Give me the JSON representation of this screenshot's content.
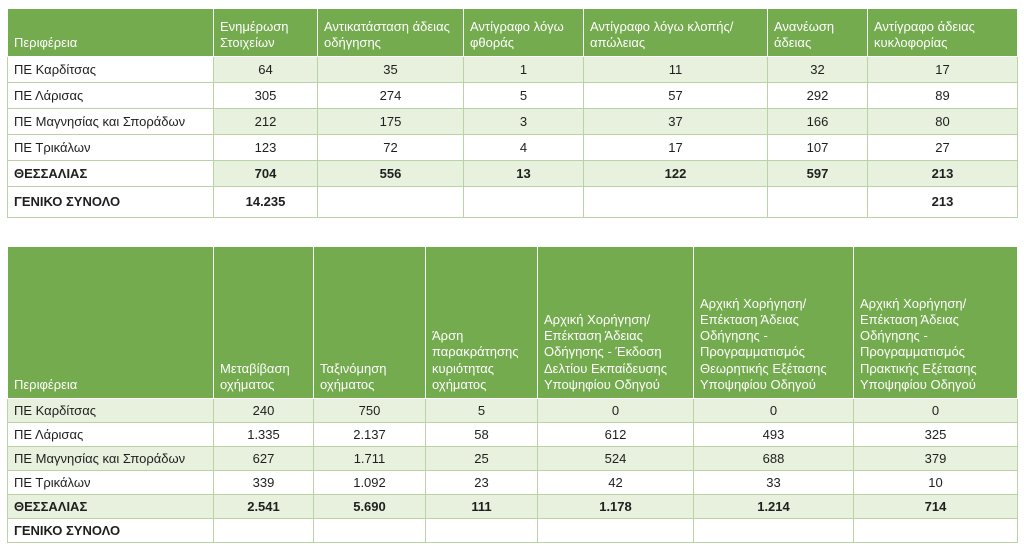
{
  "colors": {
    "header_bg": "#74AB4E",
    "stripe_bg": "#E7F1DE",
    "border": "#B9D3A4",
    "header_text": "#FFFFFF",
    "body_text": "#1F1F1F"
  },
  "table1": {
    "columns": [
      {
        "label": "Περιφέρεια"
      },
      {
        "label": "Ενημέρωση Στοιχείων"
      },
      {
        "label": "Αντικατάσταση άδειας οδήγησης"
      },
      {
        "label": "Αντίγραφο λόγω φθοράς"
      },
      {
        "label": "Αντίγραφο λόγω κλοπής/απώλειας"
      },
      {
        "label": "Ανανέωση άδειας"
      },
      {
        "label": "Αντίγραφο άδειας κυκλοφορίας"
      }
    ],
    "rows": [
      {
        "label": "ΠΕ Καρδίτσας",
        "values": [
          "64",
          "35",
          "1",
          "11",
          "32",
          "17"
        ],
        "striped": true,
        "bold": false
      },
      {
        "label": "ΠΕ Λάρισας",
        "values": [
          "305",
          "274",
          "5",
          "57",
          "292",
          "89"
        ],
        "striped": false,
        "bold": false
      },
      {
        "label": "ΠΕ Μαγνησίας και Σποράδων",
        "values": [
          "212",
          "175",
          "3",
          "37",
          "166",
          "80"
        ],
        "striped": true,
        "bold": false
      },
      {
        "label": "ΠΕ Τρικάλων",
        "values": [
          "123",
          "72",
          "4",
          "17",
          "107",
          "27"
        ],
        "striped": false,
        "bold": false
      },
      {
        "label": "ΘΕΣΣΑΛΙΑΣ",
        "values": [
          "704",
          "556",
          "13",
          "122",
          "597",
          "213"
        ],
        "striped": true,
        "bold": true
      },
      {
        "label": "ΓΕΝΙΚΟ ΣΥΝΟΛΟ",
        "values": [
          "14.235",
          "",
          "",
          "",
          "",
          "213"
        ],
        "striped": false,
        "bold": true
      }
    ]
  },
  "table2": {
    "columns": [
      {
        "label": "Περιφέρεια"
      },
      {
        "label": "Μεταβίβαση οχήματος"
      },
      {
        "label": "Ταξινόμηση οχήματος"
      },
      {
        "label": "Άρση παρακράτησης κυριότητας οχήματος"
      },
      {
        "label": "Αρχική Χορήγηση/Επέκταση Άδειας Οδήγησης - Έκδοση Δελτίου Εκπαίδευσης Υποψηφίου Οδηγού"
      },
      {
        "label": "Αρχική Χορήγηση/Επέκταση Άδειας Οδήγησης - Προγραμματισμός Θεωρητικής Εξέτασης Υποψηφίου Οδηγού"
      },
      {
        "label": "Αρχική Χορήγηση/Επέκταση Άδειας Οδήγησης - Προγραμματισμός Πρακτικής Εξέτασης Υποψηφίου Οδηγού"
      }
    ],
    "rows": [
      {
        "label": "ΠΕ Καρδίτσας",
        "values": [
          "240",
          "750",
          "5",
          "0",
          "0",
          "0"
        ],
        "striped": true,
        "bold": false
      },
      {
        "label": "ΠΕ Λάρισας",
        "values": [
          "1.335",
          "2.137",
          "58",
          "612",
          "493",
          "325"
        ],
        "striped": false,
        "bold": false
      },
      {
        "label": "ΠΕ Μαγνησίας και Σποράδων",
        "values": [
          "627",
          "1.711",
          "25",
          "524",
          "688",
          "379"
        ],
        "striped": true,
        "bold": false
      },
      {
        "label": "ΠΕ Τρικάλων",
        "values": [
          "339",
          "1.092",
          "23",
          "42",
          "33",
          "10"
        ],
        "striped": false,
        "bold": false
      },
      {
        "label": "ΘΕΣΣΑΛΙΑΣ",
        "values": [
          "2.541",
          "5.690",
          "111",
          "1.178",
          "1.214",
          "714"
        ],
        "striped": true,
        "bold": true
      },
      {
        "label": "ΓΕΝΙΚΟ ΣΥΝΟΛΟ",
        "values": [
          "",
          "",
          "",
          "",
          "",
          ""
        ],
        "striped": false,
        "bold": true
      }
    ]
  }
}
